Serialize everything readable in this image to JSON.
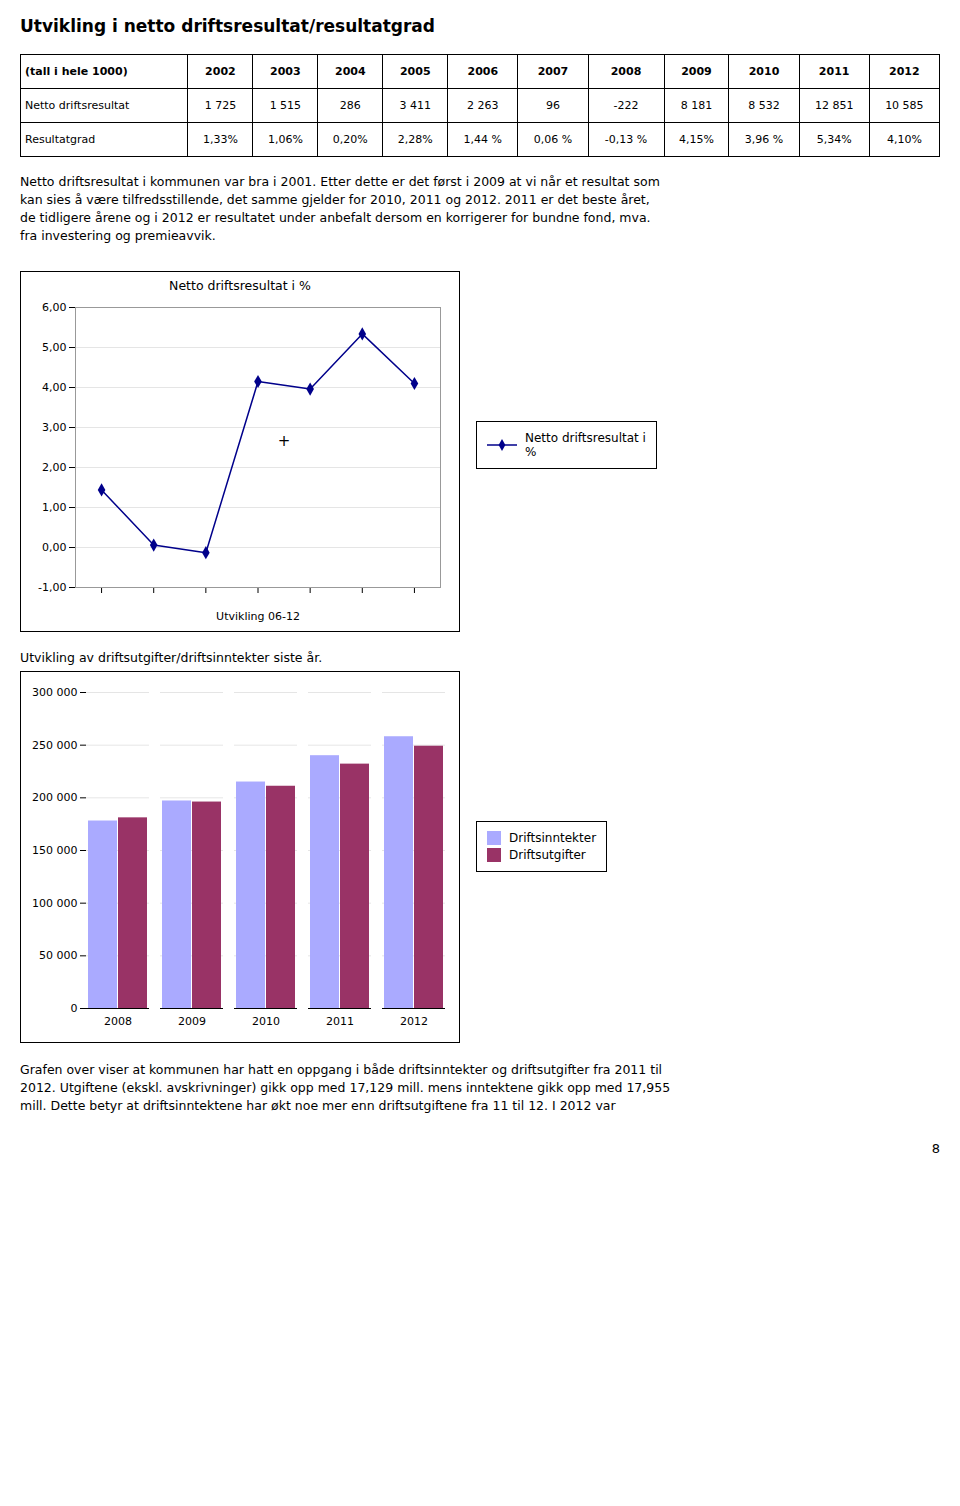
{
  "title": "Utvikling i netto driftsresultat/resultatgrad",
  "table": {
    "headers": [
      "(tall i hele 1000)",
      "2002",
      "2003",
      "2004",
      "2005",
      "2006",
      "2007",
      "2008",
      "2009",
      "2010",
      "2011",
      "2012"
    ],
    "rows": [
      [
        "Netto driftsresultat",
        "1 725",
        "1 515",
        "286",
        "3 411",
        "2 263",
        "96",
        "-222",
        "8 181",
        "8 532",
        "12 851",
        "10 585"
      ],
      [
        "Resultatgrad",
        "1,33%",
        "1,06%",
        "0,20%",
        "2,28%",
        "1,44 %",
        "0,06 %",
        "-0,13 %",
        "4,15%",
        "3,96 %",
        "5,34%",
        "4,10%"
      ]
    ]
  },
  "body_top": [
    "Netto driftsresultat i kommunen var bra i 2001. Etter dette er det først i 2009 at vi når et resultat som",
    "kan sies å være tilfredsstillende, det samme gjelder for 2010, 2011 og 2012. 2011 er det beste året,",
    "de tidligere årene og i 2012 er resultatet under anbefalt dersom en korrigerer for bundne fond, mva.",
    "fra investering og premieavvik."
  ],
  "chart_data": [
    {
      "type": "line",
      "title": "Netto driftsresultat i %",
      "xlabel": "Utvikling 06-12",
      "categories": [
        null,
        null,
        null,
        null,
        null,
        null,
        null
      ],
      "series": [
        {
          "name": "Netto driftsresultat i\n%",
          "color": "#00008B",
          "marker": "diamond",
          "values": [
            1.44,
            0.06,
            -0.13,
            4.15,
            3.96,
            5.34,
            4.1
          ]
        }
      ],
      "ylim": [
        -1.0,
        6.0
      ],
      "yticks": [
        {
          "value": -1.0,
          "label": "-1,00"
        },
        {
          "value": 0.0,
          "label": "0,00"
        },
        {
          "value": 1.0,
          "label": "1,00"
        },
        {
          "value": 2.0,
          "label": "2,00"
        },
        {
          "value": 3.0,
          "label": "3,00"
        },
        {
          "value": 4.0,
          "label": "4,00"
        },
        {
          "value": 5.0,
          "label": "5,00"
        },
        {
          "value": 6.0,
          "label": "6,00"
        }
      ],
      "grid": true,
      "legend": "right",
      "tick_labels": "y",
      "annotations": [
        {
          "text": "+",
          "x": 3.5,
          "y": 2.65
        }
      ]
    },
    {
      "type": "bar",
      "title": "Utvikling av driftsutgifter/driftsinntekter siste år.",
      "categories": [
        "2008",
        "2009",
        "2010",
        "2011",
        "2012"
      ],
      "series": [
        {
          "name": "Driftsinntekter",
          "color": "#AAAAFF",
          "values": [
            178000,
            197000,
            215000,
            240000,
            258000
          ]
        },
        {
          "name": "Driftsutgifter",
          "color": "#993366",
          "values": [
            181000,
            196000,
            211000,
            232000,
            249000
          ]
        }
      ],
      "ylim": [
        0,
        300000
      ],
      "yticks": [
        0,
        {
          "value": 50000,
          "label": "50 000"
        },
        {
          "value": 100000,
          "label": "100 000"
        },
        {
          "value": 150000,
          "label": "150 000"
        },
        {
          "value": 200000,
          "label": "200 000"
        },
        {
          "value": 250000,
          "label": "250 000"
        },
        {
          "value": 300000,
          "label": "300 000"
        }
      ],
      "grid": true,
      "legend": "right"
    }
  ],
  "body_bottom": [
    "Grafen over viser at kommunen har hatt en oppgang i både driftsinntekter og driftsutgifter fra 2011 til",
    "2012. Utgiftene (ekskl. avskrivninger) gikk opp med 17,129 mill. mens inntektene gikk opp med 17,955",
    "mill. Dette betyr at driftsinntektene har økt noe mer enn driftsutgiftene fra 11 til 12. I 2012 var"
  ],
  "page_number": "8"
}
